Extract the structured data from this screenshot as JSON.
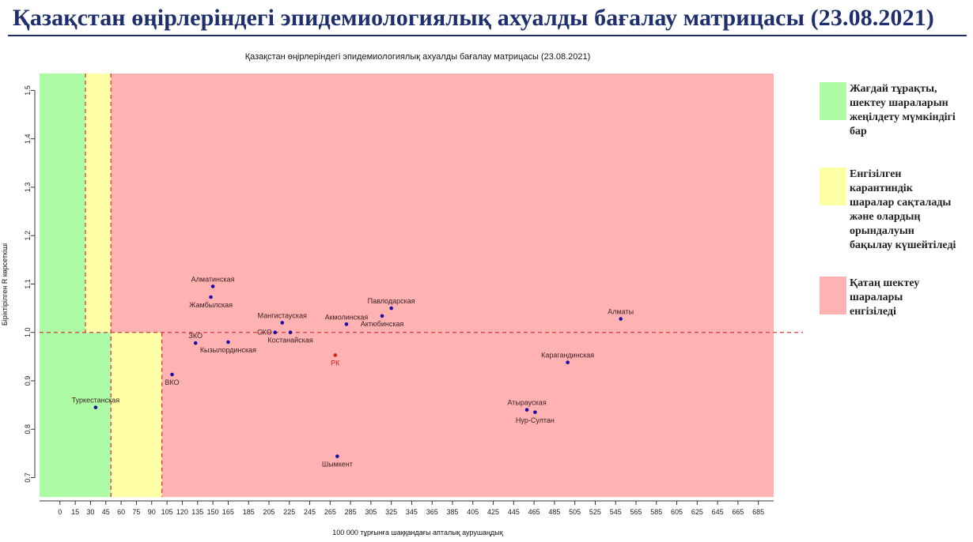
{
  "slide_title": "Қазақстан өңірлеріндегі эпидемиологиялық ахуалды бағалау матрицасы  (23.08.2021)",
  "colors": {
    "green": "#adfca5",
    "yellow": "#ffffa8",
    "red": "#ffb2b2",
    "point": "#1a0aa8",
    "point_rk": "#e01e1e",
    "line": "#d63a3a"
  },
  "legend": [
    {
      "color": "#adfca5",
      "text": "Жағдай тұрақты,\nшектеу шараларын\nжеңілдету мүмкіндігі\nбар"
    },
    {
      "color": "#ffffa8",
      "text": "Енгізілген\nкарантиндік\nшаралар сақталады\nжәне олардың\nорындалуын\nбақылау күшейтіледі"
    },
    {
      "color": "#ffb2b2",
      "text": "Қатаң шектеу\nшаралары\nенгізіледі"
    }
  ],
  "chart_data": {
    "type": "scatter",
    "title": "Қазақстан өңірлеріндегі эпидемиологиялық ахуалды бағалау матрицасы  (23.08.2021)",
    "xlabel": "100 000 тұрғынға шаққандағы апталық аурушаңдық",
    "ylabel": "Біріктірілген R көрсеткіші",
    "xlim": [
      -20,
      700
    ],
    "ylim": [
      0.66,
      1.535
    ],
    "x_ticks": [
      0,
      15,
      30,
      45,
      60,
      75,
      90,
      105,
      120,
      135,
      150,
      165,
      185,
      205,
      225,
      245,
      265,
      285,
      305,
      325,
      345,
      365,
      385,
      405,
      425,
      445,
      465,
      485,
      505,
      525,
      545,
      565,
      585,
      605,
      625,
      645,
      665,
      685
    ],
    "y_ticks": [
      0.7,
      0.8,
      0.9,
      1.0,
      1.1,
      1.2,
      1.3,
      1.4,
      1.5
    ],
    "zones": [
      {
        "color": "green",
        "x": [
          -20,
          25
        ],
        "y": [
          1.0,
          1.535
        ]
      },
      {
        "color": "yellow",
        "x": [
          25,
          50
        ],
        "y": [
          1.0,
          1.535
        ]
      },
      {
        "color": "red",
        "x": [
          50,
          700
        ],
        "y": [
          1.0,
          1.535
        ]
      },
      {
        "color": "green",
        "x": [
          -20,
          50
        ],
        "y": [
          0.66,
          1.0
        ]
      },
      {
        "color": "yellow",
        "x": [
          50,
          100
        ],
        "y": [
          0.66,
          1.0
        ]
      },
      {
        "color": "red",
        "x": [
          100,
          700
        ],
        "y": [
          0.66,
          1.0
        ]
      }
    ],
    "reference_lines": [
      {
        "axis": "y",
        "value": 1.0
      },
      {
        "axis": "x",
        "value": 25,
        "y": [
          1.0,
          1.535
        ]
      },
      {
        "axis": "x",
        "value": 50,
        "y": [
          0.66,
          1.535
        ]
      },
      {
        "axis": "x",
        "value": 100,
        "y": [
          0.66,
          1.0
        ]
      }
    ],
    "points": [
      {
        "label": "Туркестанская",
        "x": 35,
        "y": 0.845,
        "label_pos": "above"
      },
      {
        "label": "ВКО",
        "x": 110,
        "y": 0.913,
        "label_pos": "below"
      },
      {
        "label": "ЗКО",
        "x": 133,
        "y": 0.978,
        "label_pos": "above"
      },
      {
        "label": "Кызылординская",
        "x": 165,
        "y": 0.98,
        "label_pos": "below"
      },
      {
        "label": "Алматинская",
        "x": 150,
        "y": 1.095,
        "label_pos": "above"
      },
      {
        "label": "Жамбылская",
        "x": 148,
        "y": 1.073,
        "label_pos": "below"
      },
      {
        "label": "Мангистауская",
        "x": 218,
        "y": 1.02,
        "label_pos": "above"
      },
      {
        "label": "СКО",
        "x": 211,
        "y": 1.0,
        "label_pos": "left"
      },
      {
        "label": "Костанайская",
        "x": 226,
        "y": 1.0,
        "label_pos": "below"
      },
      {
        "label": "Акмолинская",
        "x": 281,
        "y": 1.017,
        "label_pos": "above"
      },
      {
        "label": "Павлодарская",
        "x": 325,
        "y": 1.05,
        "label_pos": "above"
      },
      {
        "label": "Актюбинская",
        "x": 316,
        "y": 1.034,
        "label_pos": "below"
      },
      {
        "label": "РК",
        "x": 270,
        "y": 0.953,
        "label_pos": "below",
        "highlight": true
      },
      {
        "label": "Шымкент",
        "x": 272,
        "y": 0.744,
        "label_pos": "below"
      },
      {
        "label": "Карагандинская",
        "x": 498,
        "y": 0.938,
        "label_pos": "above"
      },
      {
        "label": "Атырауская",
        "x": 458,
        "y": 0.84,
        "label_pos": "above"
      },
      {
        "label": "Нур-Султан",
        "x": 466,
        "y": 0.835,
        "label_pos": "below"
      },
      {
        "label": "Алматы",
        "x": 550,
        "y": 1.028,
        "label_pos": "above"
      }
    ]
  }
}
